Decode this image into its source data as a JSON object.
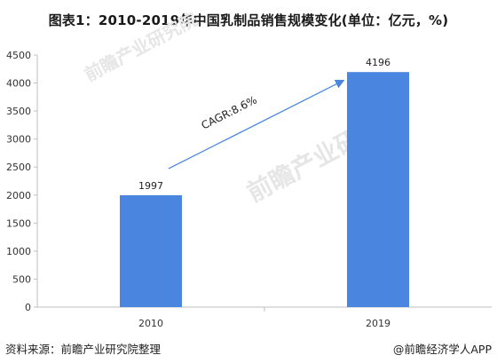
{
  "chart_data": {
    "type": "bar",
    "title": "图表1：2010-2019年中国乳制品销售规模变化(单位：亿元，%)",
    "categories": [
      "2010",
      "2019"
    ],
    "values": [
      1997,
      4196
    ],
    "data_labels": [
      "1997",
      "4196"
    ],
    "ylim": [
      0,
      4500
    ],
    "yticks": [
      "0",
      "500",
      "1000",
      "1500",
      "2000",
      "2500",
      "3000",
      "3500",
      "4000",
      "4500"
    ],
    "xlabel": "",
    "ylabel": "",
    "grid": false,
    "legend": "none",
    "annotation": "CAGR:8.6%"
  },
  "colors": {
    "bar": "#4a86e0",
    "arrow": "#4a86e0",
    "axis": "#bfbfbf"
  },
  "watermark": "前瞻产业研究院",
  "footer": {
    "source": "资料来源：前瞻产业研究院整理",
    "credit": "@前瞻经济学人APP"
  }
}
